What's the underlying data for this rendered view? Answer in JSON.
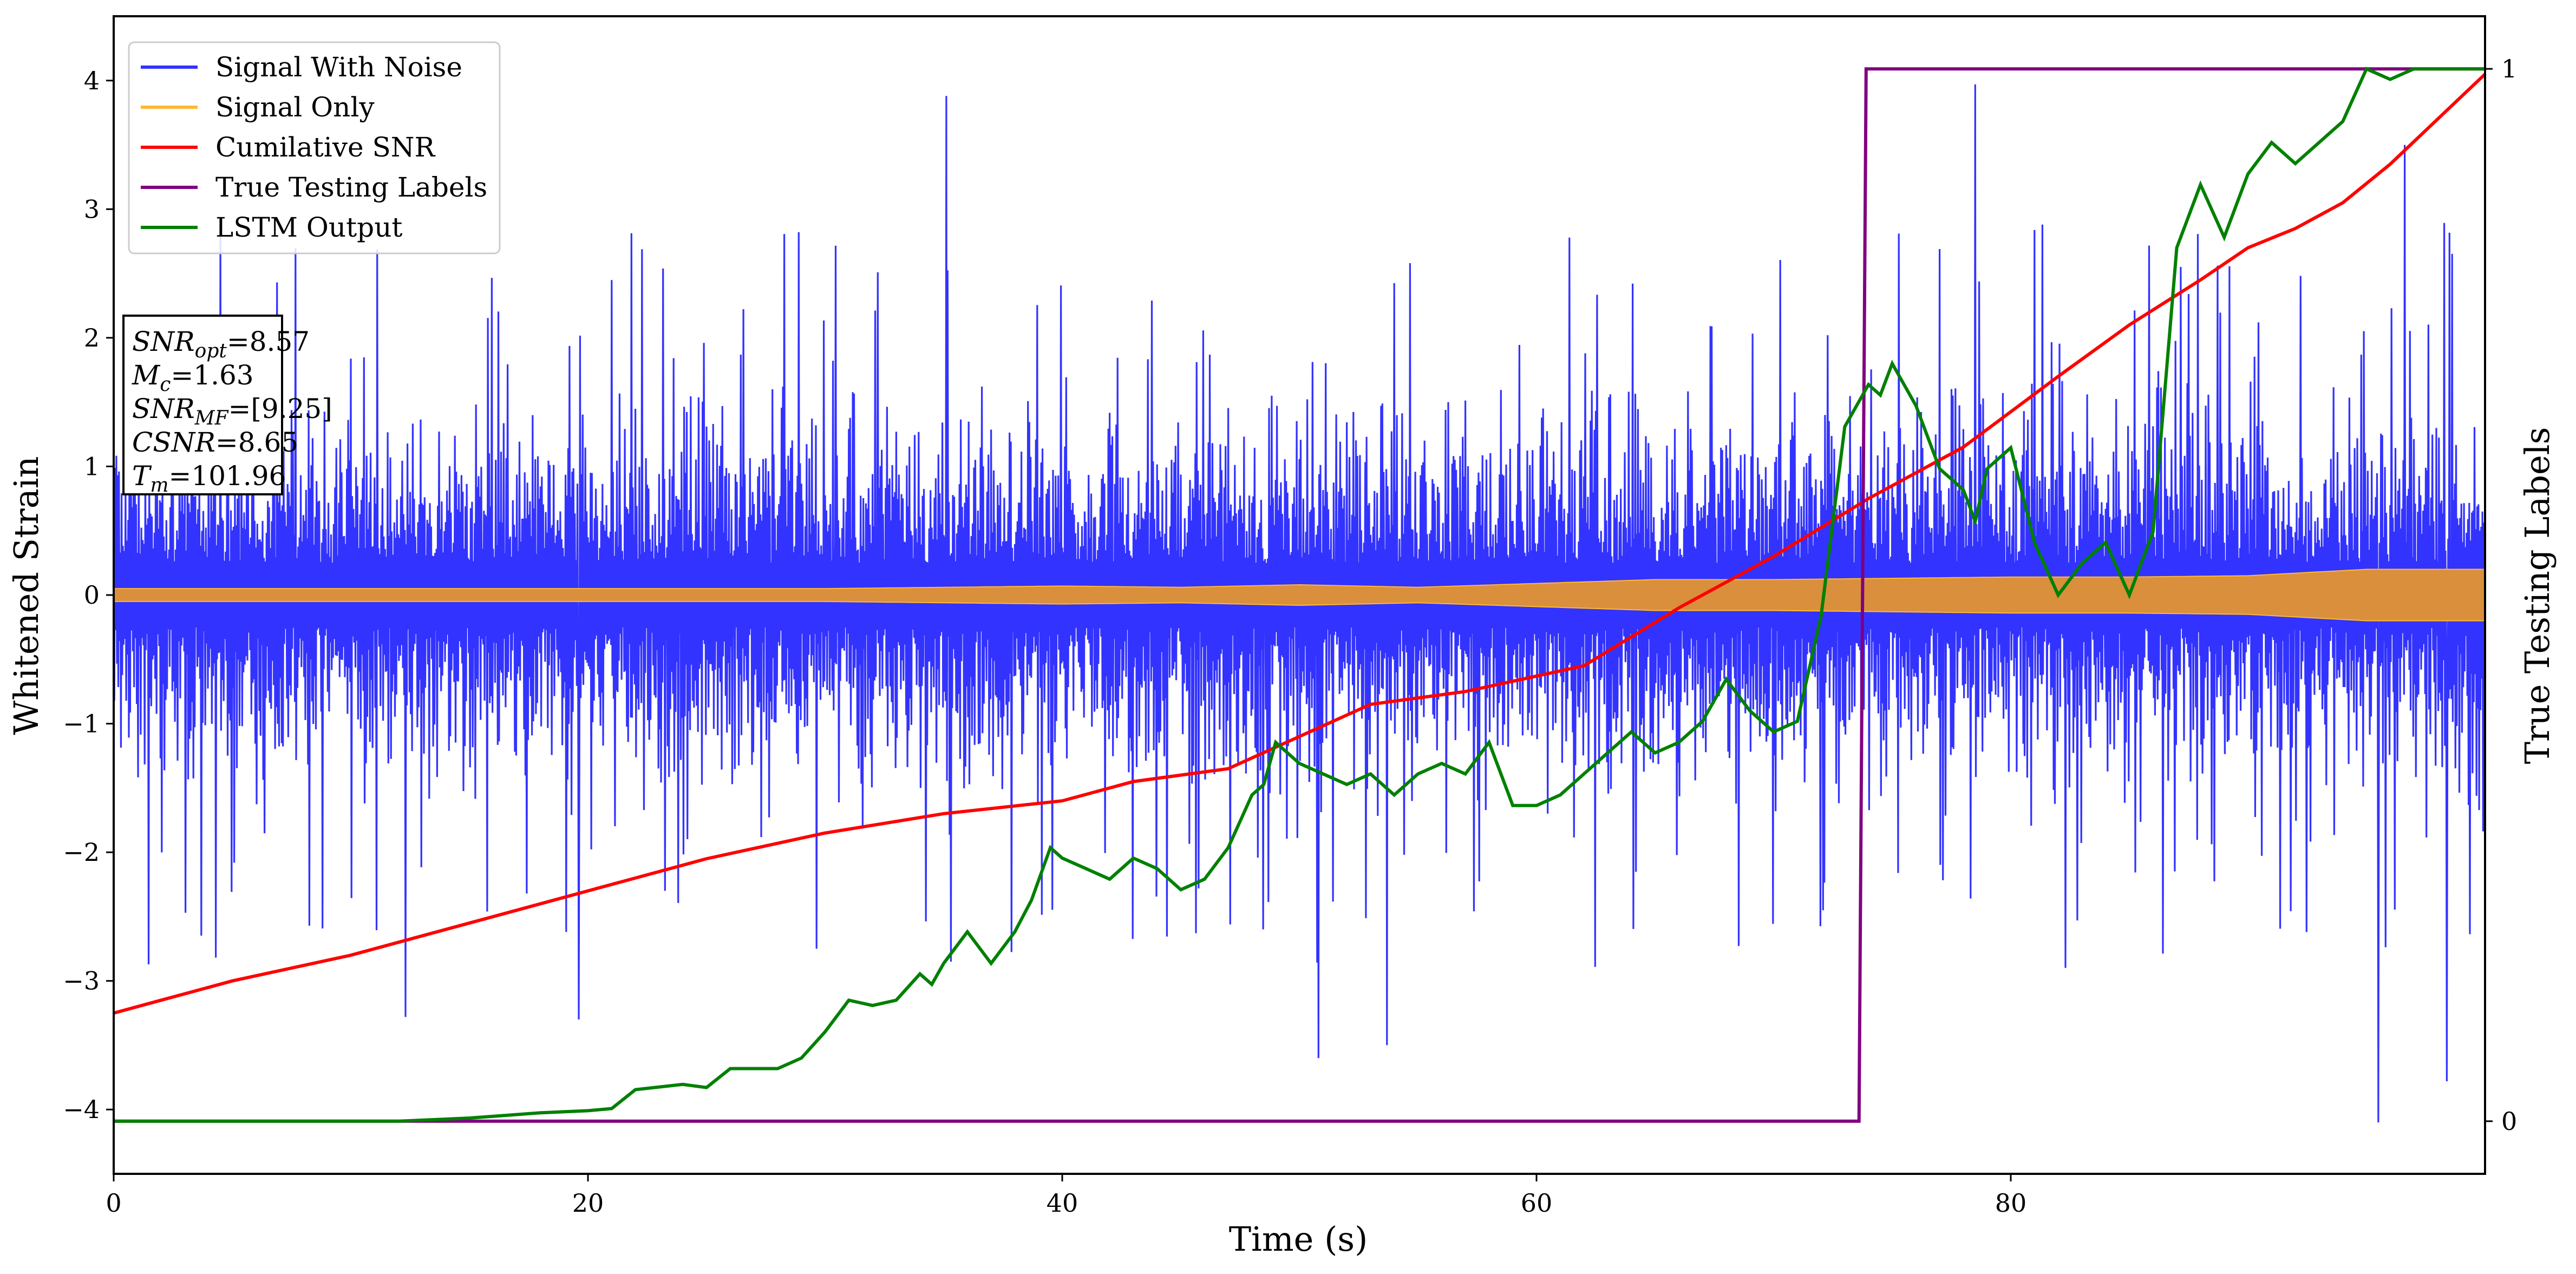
{
  "chart_data": {
    "type": "line",
    "xlabel": "Time (s)",
    "ylabel": "Whitened Strain",
    "y2label": "True Testing Labels",
    "xlim": [
      0,
      100
    ],
    "ylim": [
      -4.5,
      4.5
    ],
    "y2lim": [
      -0.05,
      1.05
    ],
    "xticks": [
      0,
      20,
      40,
      60,
      80
    ],
    "yticks": [
      -4,
      -3,
      -2,
      -1,
      0,
      1,
      2,
      3,
      4
    ],
    "y2ticks": [
      0,
      1
    ],
    "legend_position": "upper-left",
    "legend": [
      {
        "name": "Signal With Noise",
        "color": "#3333ff"
      },
      {
        "name": "Signal Only",
        "color": "#ffb833"
      },
      {
        "name": "Cumilative SNR",
        "color": "#ff0000"
      },
      {
        "name": "True Testing Labels",
        "color": "#800080"
      },
      {
        "name": "LSTM Output",
        "color": "#008000"
      }
    ],
    "annotation": {
      "lines": [
        {
          "base": "SNR",
          "sub": "opt",
          "value": "=8.57"
        },
        {
          "base": "M",
          "sub": "c",
          "value": "=1.63"
        },
        {
          "base": "SNR",
          "sub": "MF",
          "value": "=[9.25]"
        },
        {
          "base": "CSNR",
          "sub": "",
          "value": "=8.65"
        },
        {
          "base": "T",
          "sub": "m",
          "value": "=101.96"
        }
      ]
    },
    "series": [
      {
        "name": "Signal With Noise",
        "axis": "left",
        "style": "noise-band",
        "x_range": [
          0,
          100
        ],
        "typical_amplitude": 1.5,
        "peaks": [
          {
            "x": 35.1,
            "y": 3.88
          },
          {
            "x": 78.5,
            "y": 3.97
          },
          {
            "x": 96.6,
            "y": 3.5
          },
          {
            "x": 50.8,
            "y": -3.6
          },
          {
            "x": 53.7,
            "y": -3.5
          },
          {
            "x": 95.5,
            "y": -4.1
          },
          {
            "x": 98.4,
            "y": -3.78
          },
          {
            "x": 12.3,
            "y": -3.28
          },
          {
            "x": 19.6,
            "y": -3.3
          }
        ]
      },
      {
        "name": "Signal Only",
        "axis": "left",
        "style": "envelope",
        "x": [
          0,
          10,
          20,
          30,
          40,
          45,
          50,
          55,
          60,
          65,
          70,
          75,
          80,
          85,
          90,
          95,
          100
        ],
        "values": [
          0.05,
          0.05,
          0.05,
          0.05,
          0.07,
          0.06,
          0.08,
          0.06,
          0.09,
          0.12,
          0.12,
          0.13,
          0.14,
          0.14,
          0.15,
          0.2,
          0.2
        ]
      },
      {
        "name": "Cumilative SNR",
        "axis": "left",
        "x": [
          0,
          2,
          5,
          10,
          15,
          20,
          25,
          30,
          35,
          40,
          43,
          47,
          50,
          53,
          57,
          62,
          66,
          70,
          74,
          78,
          82,
          85,
          88,
          90,
          92,
          94,
          96,
          98,
          100
        ],
        "values": [
          -3.25,
          -3.15,
          -3.0,
          -2.8,
          -2.55,
          -2.3,
          -2.05,
          -1.85,
          -1.7,
          -1.6,
          -1.45,
          -1.35,
          -1.1,
          -0.85,
          -0.75,
          -0.55,
          -0.1,
          0.3,
          0.75,
          1.15,
          1.7,
          2.1,
          2.45,
          2.7,
          2.85,
          3.05,
          3.35,
          3.7,
          4.05
        ]
      },
      {
        "name": "True Testing Labels",
        "axis": "right",
        "x": [
          0,
          73.6,
          73.9,
          100
        ],
        "values": [
          0,
          0,
          1,
          1
        ]
      },
      {
        "name": "LSTM Output",
        "axis": "right",
        "x": [
          0,
          12,
          15,
          18,
          20,
          21,
          22,
          24,
          25,
          26,
          27,
          28,
          29,
          30,
          31,
          32,
          33,
          34,
          34.5,
          35,
          36,
          37,
          38,
          38.7,
          39.5,
          40,
          41,
          42,
          43,
          44,
          45,
          46,
          47,
          48,
          48.5,
          49,
          50,
          51,
          52,
          53,
          54,
          55,
          56,
          57,
          58,
          59,
          60,
          61,
          62,
          63,
          64,
          65,
          66,
          67,
          68,
          69,
          70,
          71,
          72,
          73,
          74,
          74.5,
          75,
          76,
          77,
          78,
          78.5,
          79,
          80,
          81,
          82,
          83,
          84,
          85,
          86,
          87,
          88,
          89,
          90,
          91,
          92,
          93,
          94,
          95,
          96,
          97,
          98,
          100
        ],
        "values": [
          0,
          0,
          0.003,
          0.008,
          0.01,
          0.012,
          0.03,
          0.035,
          0.032,
          0.05,
          0.05,
          0.05,
          0.06,
          0.085,
          0.115,
          0.11,
          0.115,
          0.14,
          0.13,
          0.15,
          0.18,
          0.15,
          0.18,
          0.21,
          0.26,
          0.25,
          0.24,
          0.23,
          0.25,
          0.24,
          0.22,
          0.23,
          0.26,
          0.31,
          0.32,
          0.36,
          0.34,
          0.33,
          0.32,
          0.33,
          0.31,
          0.33,
          0.34,
          0.33,
          0.36,
          0.3,
          0.3,
          0.31,
          0.33,
          0.35,
          0.37,
          0.35,
          0.36,
          0.38,
          0.42,
          0.39,
          0.37,
          0.38,
          0.48,
          0.66,
          0.7,
          0.69,
          0.72,
          0.68,
          0.62,
          0.6,
          0.57,
          0.62,
          0.64,
          0.55,
          0.5,
          0.53,
          0.55,
          0.5,
          0.56,
          0.83,
          0.89,
          0.84,
          0.9,
          0.93,
          0.91,
          0.93,
          0.95,
          1.0,
          0.99,
          1.0,
          1.0,
          1.0
        ]
      }
    ]
  }
}
